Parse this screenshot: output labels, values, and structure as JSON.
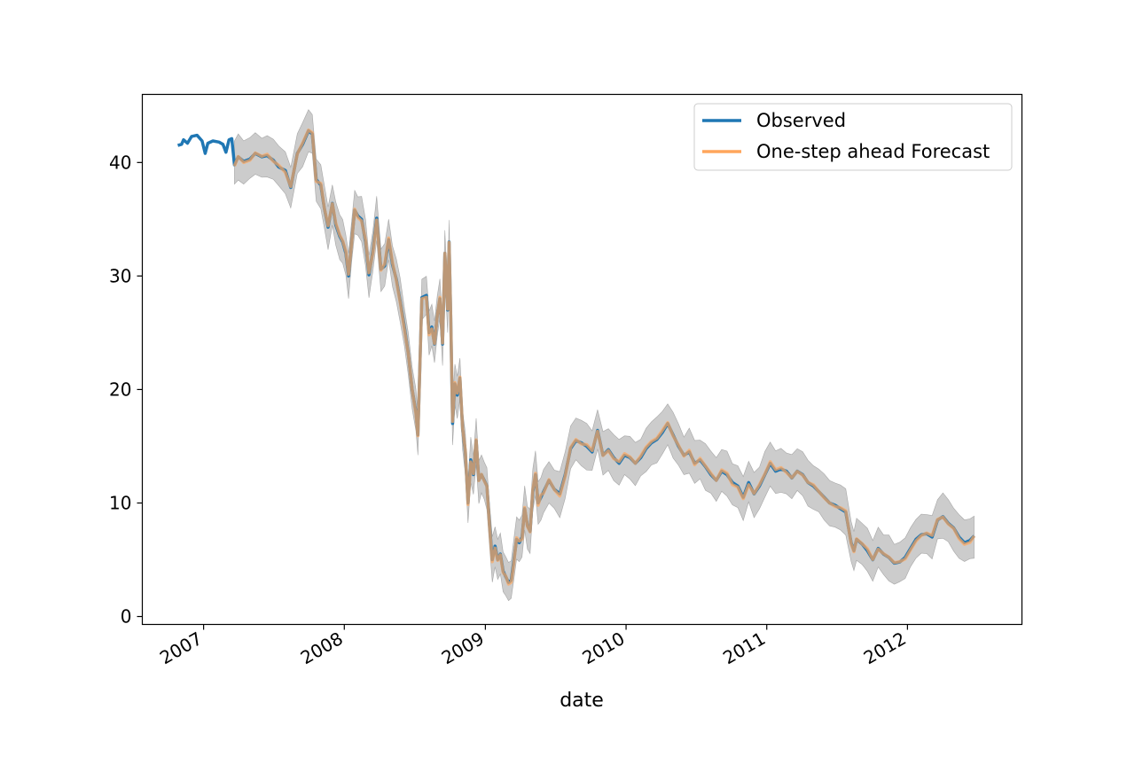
{
  "chart_data": {
    "type": "line",
    "title": "",
    "xlabel": "date",
    "ylabel": "",
    "xlim": [
      "2006-07-26",
      "2012-10-24"
    ],
    "ylim": [
      -0.7,
      46
    ],
    "yticks": [
      0,
      10,
      20,
      30,
      40
    ],
    "xticks": [
      {
        "date": "2007-01-01",
        "label": "2007"
      },
      {
        "date": "2008-01-01",
        "label": "2008"
      },
      {
        "date": "2009-01-01",
        "label": "2009"
      },
      {
        "date": "2010-01-01",
        "label": "2010"
      },
      {
        "date": "2011-01-01",
        "label": "2011"
      },
      {
        "date": "2012-01-01",
        "label": "2012"
      }
    ],
    "grid": false,
    "legend": {
      "position": "top-right"
    },
    "series": [
      {
        "name": "Observed",
        "color": "#1f77b4",
        "points": [
          [
            "2006-10-26",
            41.5
          ],
          [
            "2006-11-05",
            41.6
          ],
          [
            "2006-11-10",
            42.0
          ],
          [
            "2006-11-20",
            41.7
          ],
          [
            "2006-12-01",
            42.3
          ],
          [
            "2006-12-15",
            42.4
          ],
          [
            "2006-12-28",
            41.9
          ],
          [
            "2007-01-05",
            40.8
          ],
          [
            "2007-01-12",
            41.7
          ],
          [
            "2007-01-25",
            41.9
          ],
          [
            "2007-02-10",
            41.8
          ],
          [
            "2007-02-20",
            41.6
          ],
          [
            "2007-02-28",
            40.9
          ],
          [
            "2007-03-08",
            42.0
          ],
          [
            "2007-03-15",
            42.1
          ],
          [
            "2007-03-22",
            39.8
          ],
          [
            "2007-04-01",
            40.5
          ],
          [
            "2007-04-15",
            40.1
          ],
          [
            "2007-05-01",
            40.3
          ],
          [
            "2007-05-15",
            40.8
          ],
          [
            "2007-06-01",
            40.5
          ],
          [
            "2007-06-15",
            40.6
          ],
          [
            "2007-07-01",
            40.2
          ],
          [
            "2007-07-15",
            39.6
          ],
          [
            "2007-08-01",
            39.3
          ],
          [
            "2007-08-15",
            37.8
          ],
          [
            "2007-09-01",
            40.8
          ],
          [
            "2007-09-15",
            41.6
          ],
          [
            "2007-09-30",
            42.8
          ],
          [
            "2007-10-10",
            42.5
          ],
          [
            "2007-10-20",
            38.5
          ],
          [
            "2007-11-01",
            38.0
          ],
          [
            "2007-11-10",
            36.0
          ],
          [
            "2007-11-20",
            34.3
          ],
          [
            "2007-12-01",
            36.4
          ],
          [
            "2007-12-10",
            34.5
          ],
          [
            "2007-12-20",
            33.5
          ],
          [
            "2007-12-28",
            33.0
          ],
          [
            "2008-01-05",
            32.0
          ],
          [
            "2008-01-12",
            30.0
          ],
          [
            "2008-01-20",
            33.0
          ],
          [
            "2008-01-28",
            35.8
          ],
          [
            "2008-02-05",
            35.3
          ],
          [
            "2008-02-15",
            35.0
          ],
          [
            "2008-02-25",
            33.0
          ],
          [
            "2008-03-05",
            30.1
          ],
          [
            "2008-03-15",
            32.2
          ],
          [
            "2008-03-25",
            35.1
          ],
          [
            "2008-04-05",
            30.6
          ],
          [
            "2008-04-15",
            30.9
          ],
          [
            "2008-04-25",
            33.2
          ],
          [
            "2008-05-05",
            31.0
          ],
          [
            "2008-05-15",
            29.7
          ],
          [
            "2008-05-25",
            27.8
          ],
          [
            "2008-06-05",
            25.5
          ],
          [
            "2008-06-15",
            23.2
          ],
          [
            "2008-06-25",
            20.0
          ],
          [
            "2008-07-05",
            18.0
          ],
          [
            "2008-07-10",
            16.0
          ],
          [
            "2008-07-15",
            22.0
          ],
          [
            "2008-07-20",
            28.1
          ],
          [
            "2008-08-01",
            28.3
          ],
          [
            "2008-08-08",
            25.0
          ],
          [
            "2008-08-15",
            25.5
          ],
          [
            "2008-08-22",
            24.0
          ],
          [
            "2008-08-29",
            26.5
          ],
          [
            "2008-09-05",
            28.0
          ],
          [
            "2008-09-12",
            24.0
          ],
          [
            "2008-09-18",
            32.0
          ],
          [
            "2008-09-25",
            27.0
          ],
          [
            "2008-09-29",
            33.0
          ],
          [
            "2008-10-03",
            26.5
          ],
          [
            "2008-10-08",
            17.0
          ],
          [
            "2008-10-14",
            20.5
          ],
          [
            "2008-10-20",
            19.5
          ],
          [
            "2008-10-27",
            21.0
          ],
          [
            "2008-11-03",
            16.5
          ],
          [
            "2008-11-10",
            14.5
          ],
          [
            "2008-11-17",
            10.0
          ],
          [
            "2008-11-24",
            13.8
          ],
          [
            "2008-12-01",
            12.5
          ],
          [
            "2008-12-08",
            15.5
          ],
          [
            "2008-12-15",
            12.0
          ],
          [
            "2008-12-22",
            12.5
          ],
          [
            "2008-12-29",
            12.0
          ],
          [
            "2009-01-05",
            11.5
          ],
          [
            "2009-01-12",
            8.0
          ],
          [
            "2009-01-19",
            5.0
          ],
          [
            "2009-01-26",
            6.2
          ],
          [
            "2009-02-02",
            5.0
          ],
          [
            "2009-02-09",
            5.5
          ],
          [
            "2009-02-16",
            4.0
          ],
          [
            "2009-02-23",
            3.5
          ],
          [
            "2009-03-02",
            3.0
          ],
          [
            "2009-03-09",
            3.2
          ],
          [
            "2009-03-16",
            5.0
          ],
          [
            "2009-03-23",
            6.8
          ],
          [
            "2009-03-30",
            6.5
          ],
          [
            "2009-04-06",
            7.0
          ],
          [
            "2009-04-13",
            9.5
          ],
          [
            "2009-04-20",
            8.0
          ],
          [
            "2009-04-27",
            7.5
          ],
          [
            "2009-05-04",
            11.0
          ],
          [
            "2009-05-11",
            12.5
          ],
          [
            "2009-05-18",
            10.0
          ],
          [
            "2009-05-25",
            10.5
          ],
          [
            "2009-06-01",
            11.0
          ],
          [
            "2009-06-15",
            12.0
          ],
          [
            "2009-06-29",
            11.2
          ],
          [
            "2009-07-13",
            10.8
          ],
          [
            "2009-07-27",
            12.5
          ],
          [
            "2009-08-10",
            14.8
          ],
          [
            "2009-08-24",
            15.5
          ],
          [
            "2009-09-07",
            15.3
          ],
          [
            "2009-09-21",
            15.0
          ],
          [
            "2009-10-05",
            14.5
          ],
          [
            "2009-10-19",
            16.4
          ],
          [
            "2009-11-02",
            14.2
          ],
          [
            "2009-11-16",
            14.7
          ],
          [
            "2009-11-30",
            14.0
          ],
          [
            "2009-12-14",
            13.5
          ],
          [
            "2009-12-28",
            14.2
          ],
          [
            "2010-01-11",
            14.0
          ],
          [
            "2010-01-25",
            13.5
          ],
          [
            "2010-02-08",
            14.0
          ],
          [
            "2010-02-22",
            14.8
          ],
          [
            "2010-03-08",
            15.3
          ],
          [
            "2010-03-22",
            15.6
          ],
          [
            "2010-04-05",
            16.2
          ],
          [
            "2010-04-19",
            17.0
          ],
          [
            "2010-05-03",
            16.0
          ],
          [
            "2010-05-17",
            15.0
          ],
          [
            "2010-05-31",
            14.2
          ],
          [
            "2010-06-14",
            14.5
          ],
          [
            "2010-06-28",
            13.5
          ],
          [
            "2010-07-12",
            13.8
          ],
          [
            "2010-07-26",
            13.2
          ],
          [
            "2010-08-09",
            12.5
          ],
          [
            "2010-08-23",
            12.0
          ],
          [
            "2010-09-06",
            12.8
          ],
          [
            "2010-09-20",
            12.5
          ],
          [
            "2010-10-04",
            11.8
          ],
          [
            "2010-10-18",
            11.5
          ],
          [
            "2010-11-01",
            10.5
          ],
          [
            "2010-11-15",
            11.8
          ],
          [
            "2010-11-29",
            10.8
          ],
          [
            "2010-12-13",
            11.5
          ],
          [
            "2010-12-27",
            12.5
          ],
          [
            "2011-01-10",
            13.5
          ],
          [
            "2011-01-24",
            12.8
          ],
          [
            "2011-02-07",
            13.0
          ],
          [
            "2011-02-21",
            12.8
          ],
          [
            "2011-03-07",
            12.2
          ],
          [
            "2011-03-21",
            12.8
          ],
          [
            "2011-04-04",
            12.5
          ],
          [
            "2011-04-18",
            11.8
          ],
          [
            "2011-05-02",
            11.5
          ],
          [
            "2011-05-16",
            11.0
          ],
          [
            "2011-05-30",
            10.5
          ],
          [
            "2011-06-13",
            10.0
          ],
          [
            "2011-06-27",
            9.8
          ],
          [
            "2011-07-11",
            9.5
          ],
          [
            "2011-07-25",
            9.2
          ],
          [
            "2011-08-08",
            6.5
          ],
          [
            "2011-08-15",
            5.8
          ],
          [
            "2011-08-22",
            6.8
          ],
          [
            "2011-09-05",
            6.4
          ],
          [
            "2011-09-19",
            5.8
          ],
          [
            "2011-10-03",
            5.0
          ],
          [
            "2011-10-17",
            6.0
          ],
          [
            "2011-10-31",
            5.5
          ],
          [
            "2011-11-14",
            5.2
          ],
          [
            "2011-11-28",
            4.7
          ],
          [
            "2011-12-12",
            4.8
          ],
          [
            "2011-12-26",
            5.2
          ],
          [
            "2012-01-09",
            6.0
          ],
          [
            "2012-01-23",
            6.8
          ],
          [
            "2012-02-06",
            7.2
          ],
          [
            "2012-02-20",
            7.3
          ],
          [
            "2012-03-05",
            7.0
          ],
          [
            "2012-03-19",
            8.5
          ],
          [
            "2012-04-02",
            8.8
          ],
          [
            "2012-04-16",
            8.2
          ],
          [
            "2012-04-30",
            7.8
          ],
          [
            "2012-05-14",
            7.0
          ],
          [
            "2012-05-28",
            6.5
          ],
          [
            "2012-06-11",
            6.7
          ],
          [
            "2012-06-22",
            7.1
          ]
        ]
      },
      {
        "name": "One-step ahead Forecast",
        "color": "#ffa65c",
        "start": "2007-03-22",
        "ci_band": true
      }
    ]
  },
  "legend": {
    "observed_label": "Observed",
    "forecast_label": "One-step ahead Forecast"
  },
  "axes": {
    "x_label": "date"
  }
}
